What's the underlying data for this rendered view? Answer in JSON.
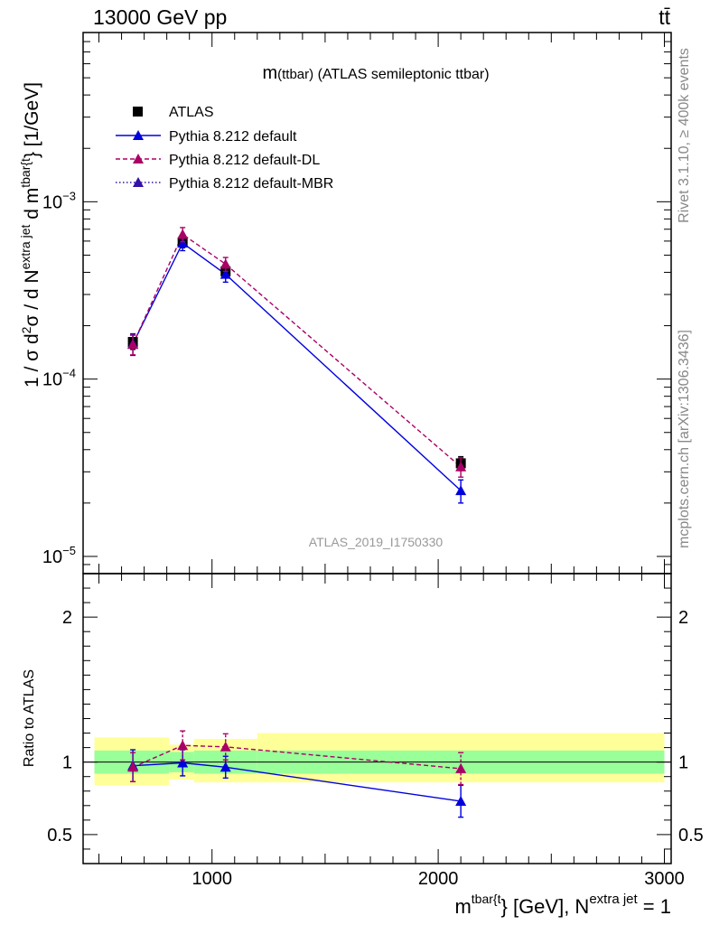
{
  "header": {
    "energy_label": "13000 GeV pp",
    "process_label": "tt̄"
  },
  "side_labels": {
    "rivet": "Rivet 3.1.10, ≥ 400k events",
    "mcplots": "mcplots.cern.ch [arXiv:1306.3436]"
  },
  "colors": {
    "data": "#000000",
    "default": "#0000dd",
    "dl": "#aa0066",
    "mbr": "#3311aa",
    "band_inner": "#99ff99",
    "band_outer": "#ffff99"
  },
  "chart_data": [
    {
      "type": "line",
      "title_main": "m",
      "title_sub": "(ttbar)",
      "title_rest": " (ATLAS semileptonic ttbar)",
      "analysis_tag": "ATLAS_2019_I1750330",
      "ylabel": {
        "a": "1 / σ d",
        "b": "2",
        "c": "σ / d N",
        "d": "extra jet",
        "e": " d m",
        "f": "tbar{t",
        "g": "} [1/GeV]"
      },
      "yscale": "log",
      "ylim": [
        8e-06,
        0.009
      ],
      "xlim": [
        430,
        3030
      ],
      "ytick_labels": [
        {
          "value": 1e-05,
          "base": "10",
          "exp": "−5"
        },
        {
          "value": 0.0001,
          "base": "10",
          "exp": "−4"
        },
        {
          "value": 0.001,
          "base": "10",
          "exp": "−3"
        }
      ],
      "legend_position": "top-left",
      "legend": {
        "atlas": "ATLAS",
        "default": "Pythia 8.212 default",
        "dl": "Pythia 8.212 default-DL",
        "mbr": "Pythia 8.212 default-MBR"
      },
      "series": [
        {
          "name": "ATLAS",
          "key": "data",
          "x": [
            650,
            870,
            1060,
            2100
          ],
          "y": [
            0.000162,
            0.00059,
            0.000405,
            3.35e-05
          ],
          "yerr_lo": [
            1.5e-05,
            4e-05,
            3e-05,
            3e-06
          ],
          "yerr_hi": [
            1.5e-05,
            4e-05,
            3e-05,
            3e-06
          ]
        },
        {
          "name": "Pythia 8.212 default",
          "key": "default",
          "x": [
            650,
            870,
            1060,
            2100
          ],
          "y": [
            0.000158,
            0.000585,
            0.00039,
            2.35e-05
          ],
          "yerr_lo": [
            2.2e-05,
            5.5e-05,
            3.8e-05,
            3.5e-06
          ],
          "yerr_hi": [
            2.2e-05,
            5.5e-05,
            3.8e-05,
            3.5e-06
          ]
        },
        {
          "name": "Pythia 8.212 default-DL",
          "key": "dl",
          "x": [
            650,
            870,
            1060,
            2100
          ],
          "y": [
            0.000157,
            0.000655,
            0.000445,
            3.2e-05
          ],
          "yerr_lo": [
            2e-05,
            6e-05,
            4e-05,
            4e-06
          ],
          "yerr_hi": [
            2e-05,
            6e-05,
            4e-05,
            4e-06
          ]
        }
      ]
    },
    {
      "type": "line",
      "ylabel": "Ratio to ATLAS",
      "xlabel": {
        "a": "m",
        "b": "tbar{t",
        "c": "} [GeV], N",
        "d": "extra jet",
        "e": " = 1"
      },
      "ylim": [
        0.3,
        2.3
      ],
      "xlim": [
        430,
        3030
      ],
      "yticks": [
        0.5,
        1,
        2
      ],
      "ytick_labels": [
        "0.5",
        "1",
        "2",
        "0.5",
        "1",
        "2"
      ],
      "xticks": [
        1000,
        2000,
        3000
      ],
      "xtick_labels": [
        "1000",
        "2000",
        "3000"
      ],
      "bands": [
        {
          "x0": 480,
          "x1": 810,
          "inner": [
            0.92,
            1.08
          ],
          "outer": [
            0.84,
            1.17
          ]
        },
        {
          "x0": 810,
          "x1": 920,
          "inner": [
            0.93,
            1.07
          ],
          "outer": [
            0.88,
            1.12
          ]
        },
        {
          "x0": 920,
          "x1": 1200,
          "inner": [
            0.92,
            1.08
          ],
          "outer": [
            0.86,
            1.16
          ]
        },
        {
          "x0": 1200,
          "x1": 3000,
          "inner": [
            0.92,
            1.08
          ],
          "outer": [
            0.86,
            1.2
          ]
        }
      ],
      "series": [
        {
          "name": "Pythia 8.212 default",
          "key": "default",
          "x": [
            650,
            870,
            1060,
            2100
          ],
          "y": [
            0.975,
            0.995,
            0.965,
            0.73
          ],
          "yerr_lo": [
            0.11,
            0.09,
            0.075,
            0.11
          ],
          "yerr_hi": [
            0.11,
            0.09,
            0.075,
            0.11
          ]
        },
        {
          "name": "Pythia 8.212 default-DL",
          "key": "dl",
          "x": [
            650,
            870,
            1060,
            2100
          ],
          "y": [
            0.965,
            1.115,
            1.105,
            0.955
          ],
          "yerr_lo": [
            0.1,
            0.1,
            0.09,
            0.11
          ],
          "yerr_hi": [
            0.1,
            0.1,
            0.09,
            0.11
          ]
        }
      ]
    }
  ]
}
